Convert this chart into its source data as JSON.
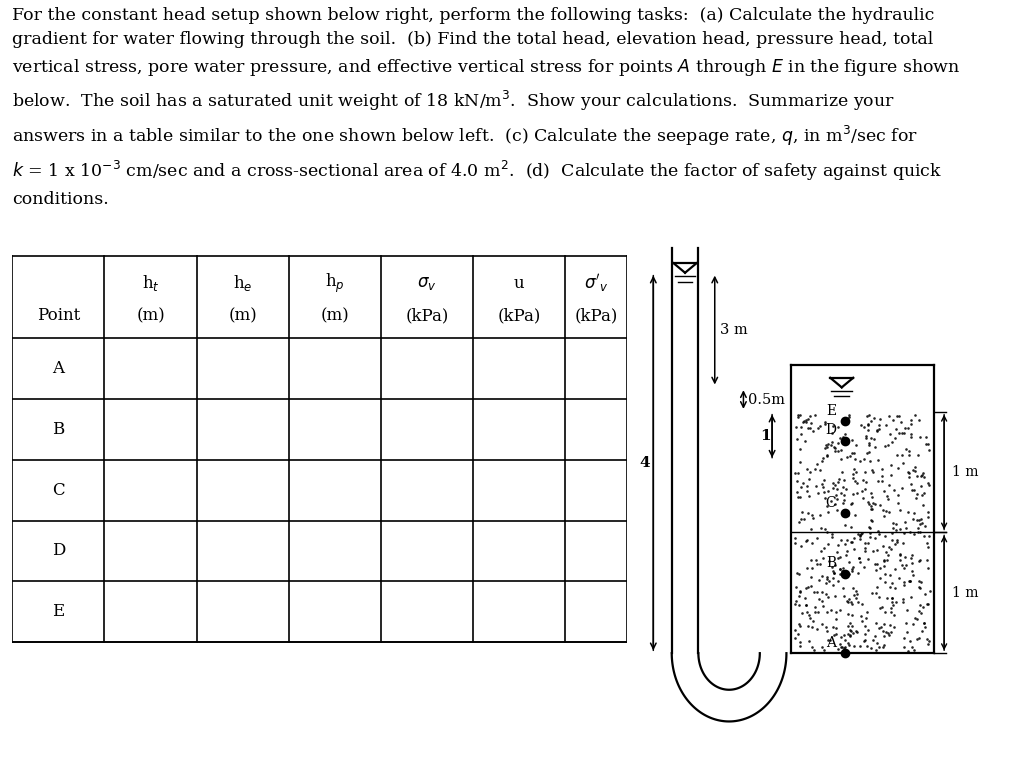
{
  "background_color": "#ffffff",
  "font_size_text": 12.5,
  "font_size_table": 12,
  "table_rows": [
    "A",
    "B",
    "C",
    "D",
    "E"
  ],
  "col_labels_top": [
    "",
    "h$_t$",
    "h$_e$",
    "h$_p$",
    "$\\sigma_v$",
    "u",
    "$\\sigma'_v$"
  ],
  "col_labels_bot": [
    "Point",
    "(m)",
    "(m)",
    "(m)",
    "(kPa)",
    "(kPa)",
    "(kPa)"
  ],
  "diagram_labels": {
    "3m": "3 m",
    "05m": "0.5m",
    "1": "1",
    "4": "4",
    "1m_top": "1 m",
    "1m_bot": "1 m"
  },
  "points": [
    "A",
    "B",
    "C",
    "D",
    "E"
  ]
}
